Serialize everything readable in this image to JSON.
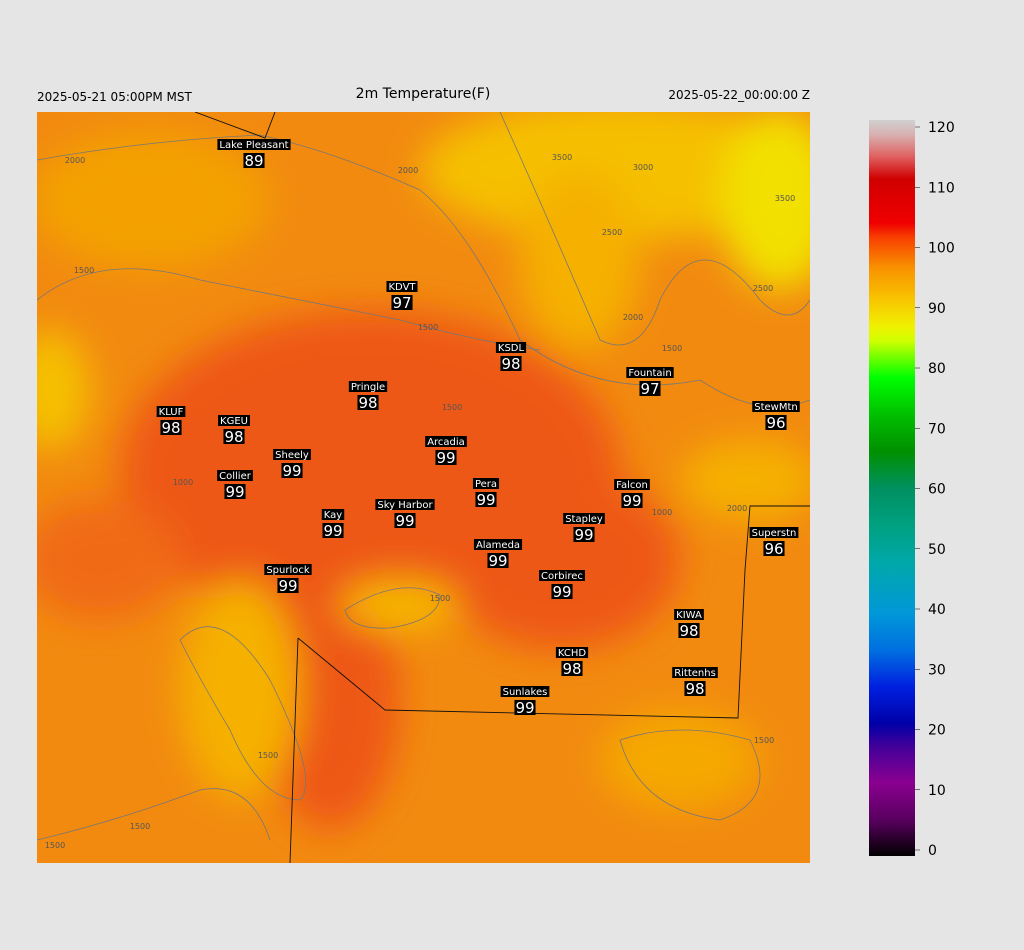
{
  "header": {
    "left": "2025-05-21 05:00PM MST",
    "title": "2m Temperature(F)",
    "right": "2025-05-22_00:00:00 Z"
  },
  "stations": [
    {
      "name": "Lake Pleasant",
      "value": 89
    },
    {
      "name": "KDVT",
      "value": 97
    },
    {
      "name": "KSDL",
      "value": 98
    },
    {
      "name": "Fountain",
      "value": 97
    },
    {
      "name": "Pringle",
      "value": 98
    },
    {
      "name": "KLUF",
      "value": 98
    },
    {
      "name": "KGEU",
      "value": 98
    },
    {
      "name": "StewMtn",
      "value": 96
    },
    {
      "name": "Arcadia",
      "value": 99
    },
    {
      "name": "Sheely",
      "value": 99
    },
    {
      "name": "Collier",
      "value": 99
    },
    {
      "name": "Pera",
      "value": 99
    },
    {
      "name": "Falcon",
      "value": 99
    },
    {
      "name": "Sky Harbor",
      "value": 99
    },
    {
      "name": "Kay",
      "value": 99
    },
    {
      "name": "Stapley",
      "value": 99
    },
    {
      "name": "Superstn",
      "value": 96
    },
    {
      "name": "Alameda",
      "value": 99
    },
    {
      "name": "Spurlock",
      "value": 99
    },
    {
      "name": "Corbirec",
      "value": 99
    },
    {
      "name": "KIWA",
      "value": 98
    },
    {
      "name": "KCHD",
      "value": 98
    },
    {
      "name": "Rittenhs",
      "value": 98
    },
    {
      "name": "Sunlakes",
      "value": 99
    }
  ],
  "contour_labels": [
    2000,
    2000,
    3500,
    3000,
    3500,
    2500,
    2000,
    2500,
    1500,
    1500,
    1500,
    1500,
    1000,
    2000,
    1000,
    1500,
    1500,
    1500,
    1500,
    1500
  ],
  "colorbar": {
    "range": [
      0,
      120
    ],
    "ticks": [
      0,
      10,
      20,
      30,
      40,
      50,
      60,
      70,
      80,
      90,
      100,
      110,
      120
    ]
  }
}
